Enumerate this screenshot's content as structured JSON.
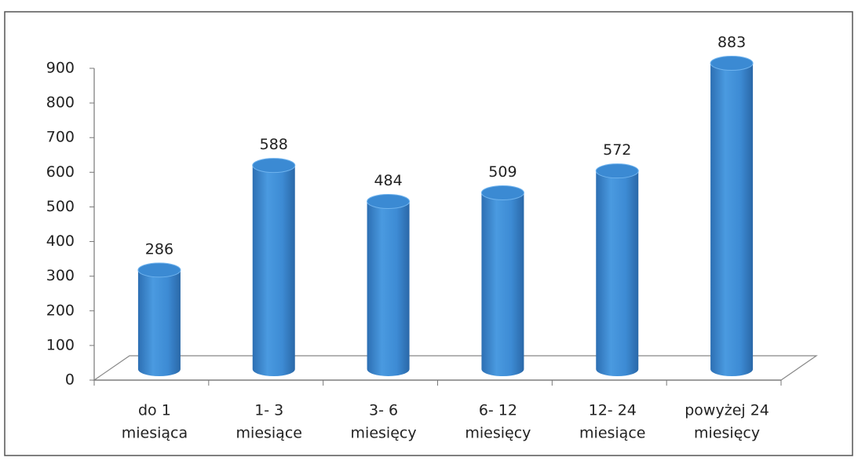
{
  "chart_data": {
    "type": "bar",
    "categories": [
      [
        "do 1",
        "miesiąca"
      ],
      [
        "1- 3",
        "miesiące"
      ],
      [
        "3- 6",
        "miesięcy"
      ],
      [
        "6- 12",
        "miesięcy"
      ],
      [
        "12- 24",
        "miesiące"
      ],
      [
        "powyżej 24",
        "miesięcy"
      ]
    ],
    "values": [
      286,
      588,
      484,
      509,
      572,
      883
    ],
    "color": "#3b8ad3",
    "ylim": [
      0,
      900
    ],
    "yticks": [
      0,
      100,
      200,
      300,
      400,
      500,
      600,
      700,
      800,
      900
    ],
    "grid": false
  }
}
